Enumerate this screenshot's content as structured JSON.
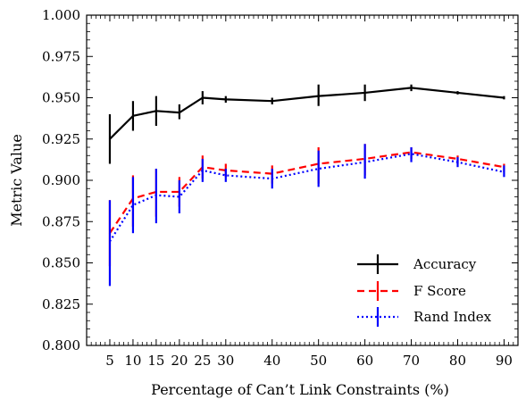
{
  "chart_data": {
    "type": "line",
    "title": "",
    "xlabel": "Percentage of Can’t Link Constraints (%)",
    "ylabel": "Metric Value",
    "x": [
      5,
      10,
      15,
      20,
      25,
      30,
      40,
      50,
      60,
      70,
      80,
      90
    ],
    "xticks": [
      "5",
      "10",
      "15",
      "20",
      "25",
      "30",
      "40",
      "50",
      "60",
      "70",
      "80",
      "90"
    ],
    "xlim": [
      0,
      93
    ],
    "ylim": [
      0.8,
      1.0
    ],
    "yticks": [
      "0.800",
      "0.825",
      "0.850",
      "0.875",
      "0.900",
      "0.925",
      "0.950",
      "0.975",
      "1.000"
    ],
    "grid": false,
    "legend_position": "bottom-right",
    "series": [
      {
        "name": "Accuracy",
        "color": "#000000",
        "style": "solid",
        "values": [
          0.925,
          0.939,
          0.942,
          0.941,
          0.95,
          0.949,
          0.948,
          0.951,
          0.953,
          0.956,
          0.953,
          0.95
        ],
        "err_low": [
          0.91,
          0.93,
          0.933,
          0.937,
          0.946,
          0.947,
          0.946,
          0.945,
          0.948,
          0.954,
          0.952,
          0.949
        ],
        "err_high": [
          0.94,
          0.948,
          0.951,
          0.946,
          0.954,
          0.951,
          0.95,
          0.958,
          0.958,
          0.958,
          0.954,
          0.951
        ]
      },
      {
        "name": "F Score",
        "color": "#ff0000",
        "style": "dashed",
        "values": [
          0.868,
          0.889,
          0.893,
          0.893,
          0.908,
          0.906,
          0.904,
          0.91,
          0.913,
          0.917,
          0.913,
          0.908
        ],
        "err_low": [
          0.848,
          0.872,
          0.878,
          0.884,
          0.901,
          0.902,
          0.898,
          0.898,
          0.903,
          0.913,
          0.91,
          0.905
        ],
        "err_high": [
          0.888,
          0.903,
          0.907,
          0.902,
          0.915,
          0.91,
          0.909,
          0.92,
          0.922,
          0.92,
          0.915,
          0.91
        ]
      },
      {
        "name": "Rand Index",
        "color": "#0000ff",
        "style": "dotted",
        "values": [
          0.863,
          0.885,
          0.891,
          0.89,
          0.906,
          0.903,
          0.901,
          0.907,
          0.911,
          0.916,
          0.911,
          0.905
        ],
        "err_low": [
          0.836,
          0.868,
          0.874,
          0.88,
          0.899,
          0.899,
          0.895,
          0.896,
          0.901,
          0.911,
          0.908,
          0.902
        ],
        "err_high": [
          0.888,
          0.902,
          0.907,
          0.9,
          0.913,
          0.907,
          0.907,
          0.918,
          0.922,
          0.92,
          0.914,
          0.909
        ]
      }
    ]
  }
}
